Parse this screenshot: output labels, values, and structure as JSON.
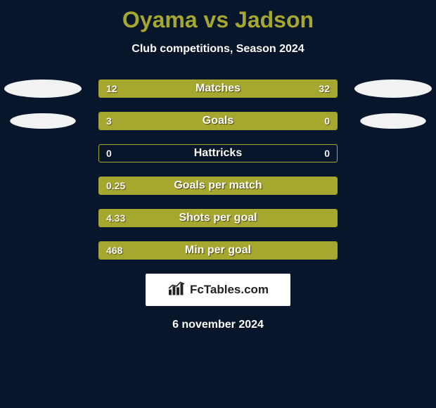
{
  "colors": {
    "background": "#07162b",
    "title": "#a6a72f",
    "subtitle": "#ffffff",
    "avatar": "#f2f2f2",
    "bar_border": "#a6a72f",
    "bar_fill": "#a6a72f",
    "bar_label": "#ffffff",
    "bar_value": "#f5f5f5",
    "brand_bg": "#ffffff",
    "brand_text": "#222222",
    "footer": "#ffffff"
  },
  "header": {
    "title": "Oyama vs Jadson",
    "subtitle": "Club competitions, Season 2024"
  },
  "stats": [
    {
      "label": "Matches",
      "left_display": "12",
      "right_display": "32",
      "left_value": 12,
      "right_value": 32,
      "has_avatar": true,
      "avatar_scale": 1.0
    },
    {
      "label": "Goals",
      "left_display": "3",
      "right_display": "0",
      "left_value": 3,
      "right_value": 0,
      "has_avatar": true,
      "avatar_scale": 0.85
    },
    {
      "label": "Hattricks",
      "left_display": "0",
      "right_display": "0",
      "left_value": 0,
      "right_value": 0,
      "has_avatar": false,
      "avatar_scale": 0
    },
    {
      "label": "Goals per match",
      "left_display": "0.25",
      "right_display": "",
      "left_value": 0.25,
      "right_value": 0,
      "has_avatar": false,
      "avatar_scale": 0
    },
    {
      "label": "Shots per goal",
      "left_display": "4.33",
      "right_display": "",
      "left_value": 4.33,
      "right_value": 0,
      "has_avatar": false,
      "avatar_scale": 0
    },
    {
      "label": "Min per goal",
      "left_display": "468",
      "right_display": "",
      "left_value": 468,
      "right_value": 0,
      "has_avatar": false,
      "avatar_scale": 0
    }
  ],
  "brand": {
    "text": "FcTables.com"
  },
  "footer": {
    "date": "6 november 2024"
  }
}
